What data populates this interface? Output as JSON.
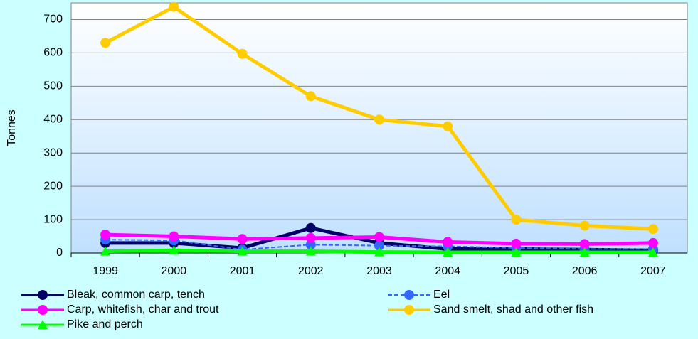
{
  "chart_data": {
    "type": "line",
    "y_label": "Tonnes",
    "categories": [
      "1999",
      "2000",
      "2001",
      "2002",
      "2003",
      "2004",
      "2005",
      "2006",
      "2007"
    ],
    "series": [
      {
        "name": "Bleak, common carp, tench",
        "color": "#000066",
        "marker": "circle",
        "values": [
          30,
          30,
          15,
          75,
          30,
          12,
          12,
          10,
          8
        ]
      },
      {
        "name": "Eel",
        "color": "#3366ff",
        "marker": "circle",
        "dashed": true,
        "values": [
          40,
          38,
          10,
          25,
          22,
          20,
          15,
          12,
          12
        ]
      },
      {
        "name": "Carp, whitefish, char and trout",
        "color": "#ff00ff",
        "marker": "circle",
        "values": [
          55,
          50,
          42,
          45,
          48,
          33,
          28,
          27,
          30
        ]
      },
      {
        "name": "Sand smelt, shad and other fish",
        "color": "#ffcc00",
        "marker": "circle",
        "values": [
          630,
          738,
          597,
          470,
          400,
          380,
          100,
          82,
          72
        ]
      },
      {
        "name": "Pike and perch",
        "color": "#00ff00",
        "marker": "triangle",
        "values": [
          5,
          8,
          5,
          5,
          3,
          2,
          2,
          2,
          2
        ]
      }
    ],
    "ylim": [
      0,
      750
    ],
    "yticks": [
      0,
      100,
      200,
      300,
      400,
      500,
      600,
      700
    ],
    "grid": true
  }
}
